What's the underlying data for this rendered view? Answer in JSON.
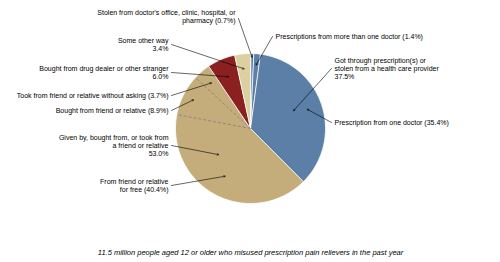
{
  "chart_data": {
    "type": "pie",
    "categories": [
      "Stolen from doctor's office, clinic, hospital, or\npharmacy (0.7%)",
      "Prescriptions from more than one doctor (1.4%)",
      "Prescription from one doctor (35.4%)",
      "Given by, bought from, or took from\na friend or relative\n53.0%",
      "Bought from drug dealer or other stranger\n6.0%",
      "Some other way\n3.4%"
    ],
    "values": [
      0.7,
      1.4,
      35.4,
      53.0,
      6.0,
      3.4
    ],
    "colors": [
      "#5b7fa6",
      "#5b7fa6",
      "#5b7fa6",
      "#c4ad7a",
      "#8b2020",
      "#ddd0a0"
    ],
    "groups": [
      {
        "label": "Got through prescription(s) or\nstolen from a health care provider\n37.5%",
        "value": 37.5
      }
    ],
    "breakdowns": [
      null,
      null,
      null,
      [
        {
          "label": "From friend or relative\nfor free (40.4%)",
          "value": 40.4
        },
        {
          "label": "Bought from friend or relative (8.9%)",
          "value": 8.9
        },
        {
          "label": "Took from friend or relative without asking (3.7%)",
          "value": 3.7
        }
      ],
      null,
      null
    ],
    "caption": "11.5 million people aged 12 or older who misused prescription pain relievers in the past year"
  }
}
